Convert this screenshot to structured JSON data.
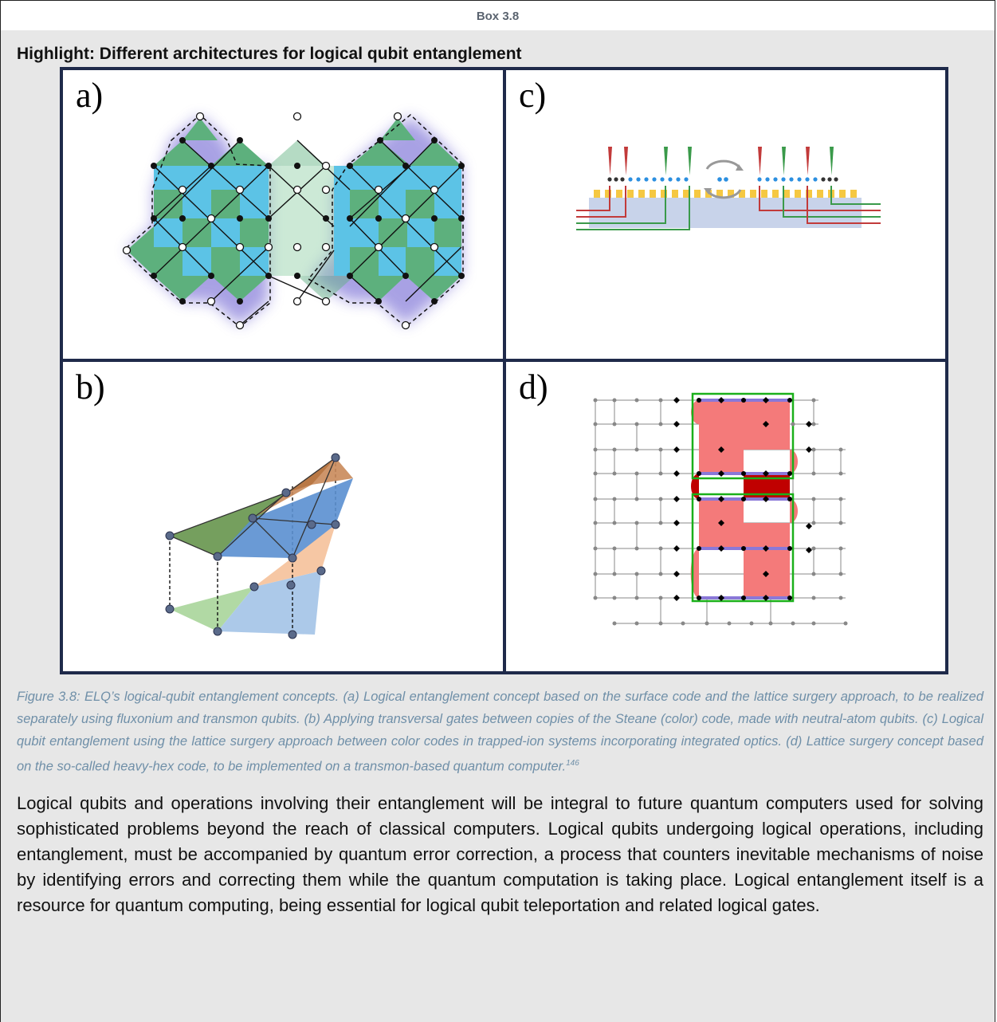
{
  "box": {
    "label": "Box 3.8"
  },
  "heading": "Highlight: Different architectures for logical qubit entanglement",
  "figure": {
    "panels": {
      "a": "a)",
      "b": "b)",
      "c": "c)",
      "d": "d)"
    }
  },
  "caption": {
    "text": "Figure 3.8: ELQ’s logical-qubit entanglement concepts. (a) Logical entanglement concept based on the surface code and the lattice surgery approach, to be realized separately using fluxonium and transmon qubits. (b) Applying transversal gates between copies of the Steane (color) code, made with neutral-atom qubits. (c) Logical qubit entanglement using the lattice surgery approach between color codes in trapped-ion systems incorporating integrated optics. (d) Lattice surgery concept based on the so-called heavy-hex code, to be implemented on a transmon-based quantum computer.",
    "footnote": "146"
  },
  "body_text": "Logical qubits and operations involving their entanglement will be integral to future quantum computers used for solving sophisticated problems beyond the reach of classical computers. Logical qubits undergoing logical operations, including entanglement, must be accompanied by quantum error correction, a process that counters inevitable mechanisms of noise by identifying errors and correcting them while the quantum computation is taking place. Logical entanglement itself is a resource for quantum computing, being essential for logical qubit teleportation and related logical gates.",
  "colors": {
    "figure_border": "#1f2a4a",
    "box_background": "#e7e7e7",
    "caption": "#6f8fa8",
    "surface_green": "#5db07d",
    "surface_blue": "#5cc3e6",
    "glow_purple": "#7a6fd6",
    "ion_blue": "#2b8fe0",
    "laser_red": "#c23a3a",
    "laser_green": "#3a9a4a",
    "electrode_yellow": "#f5c842",
    "heavyhex_red": "#f47a7a",
    "heavyhex_darkred": "#c00000",
    "heavyhex_green": "#1ab01a"
  }
}
